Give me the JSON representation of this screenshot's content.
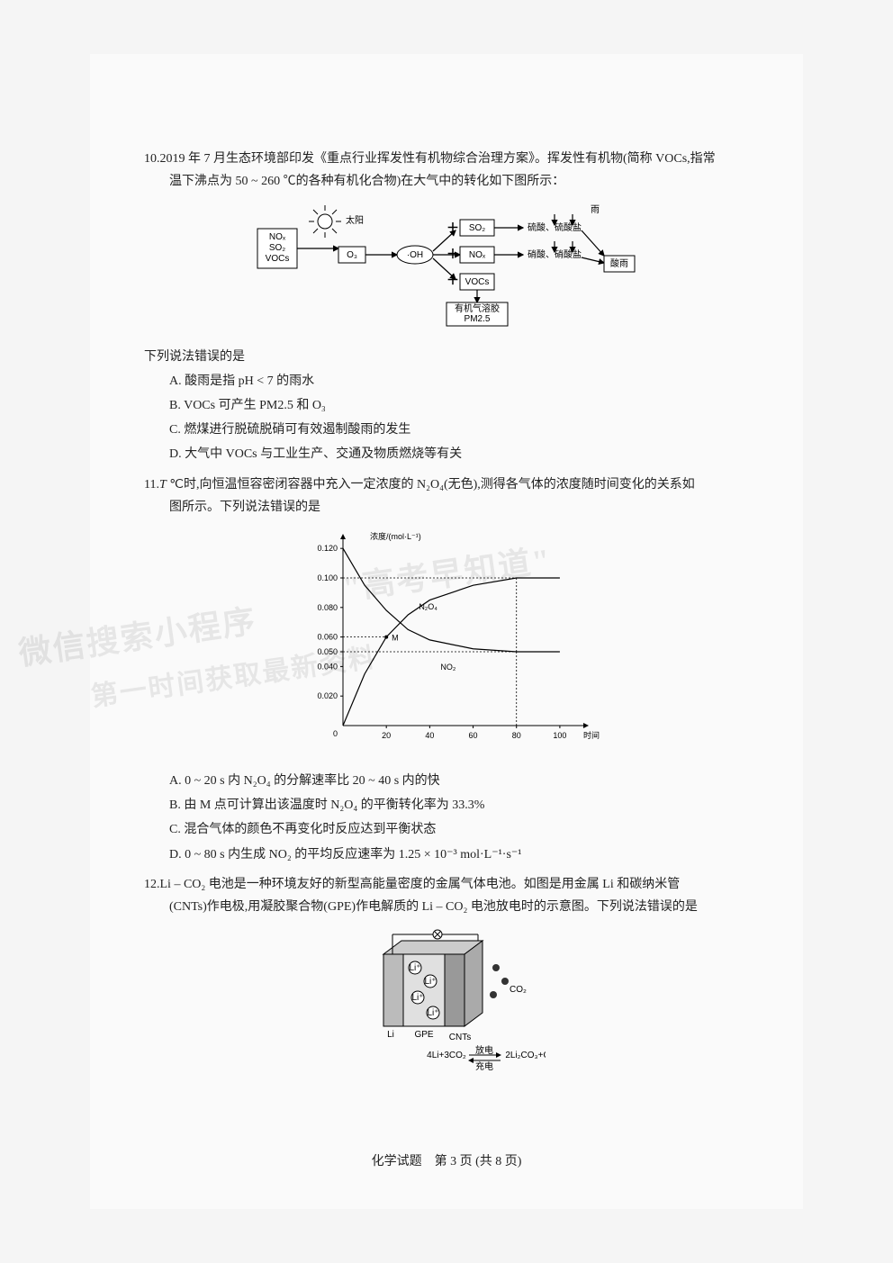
{
  "q10": {
    "num": "10.",
    "stem1": "2019 年 7 月生态环境部印发《重点行业挥发性有机物综合治理方案》。挥发性有机物(简称 VOCs,指常",
    "stem2": "温下沸点为 50 ~ 260 ℃的各种有机化合物)在大气中的转化如下图所示：",
    "prompt": "下列说法错误的是",
    "A": "A. 酸雨是指 pH < 7 的雨水",
    "B": "B. VOCs 可产生 PM2.5 和 O₃",
    "C": "C. 燃煤进行脱硫脱硝可有效遏制酸雨的发生",
    "D": "D. 大气中 VOCs 与工业生产、交通及物质燃烧等有关",
    "diag": {
      "leftbox": [
        "NOₓ",
        "SO₂",
        "VOCs"
      ],
      "sun": "太阳",
      "o3": "O₃",
      "oh": "·OH",
      "so2": "SO₂",
      "nox": "NOₓ",
      "vocs": "VOCs",
      "r1": "硫酸、硫酸盐",
      "r2": "硝酸、硝酸盐",
      "rain": "雨",
      "acid": "酸雨",
      "pm": "有机气溶胶\nPM2.5"
    }
  },
  "q11": {
    "num": "11.",
    "stem1": "T ℃时,向恒温恒容密闭容器中充入一定浓度的 N₂O₄(无色),测得各气体的浓度随时间变化的关系如",
    "stem2": "图所示。下列说法错误的是",
    "A": "A. 0 ~ 20 s 内 N₂O₄ 的分解速率比 20 ~ 40 s 内的快",
    "B": "B. 由 M 点可计算出该温度时 N₂O₄ 的平衡转化率为 33.3%",
    "C": "C. 混合气体的颜色不再变化时反应达到平衡状态",
    "D": "D. 0 ~ 80 s 内生成 NO₂ 的平均反应速率为 1.25 × 10⁻³ mol·L⁻¹·s⁻¹",
    "chart": {
      "ylabel": "浓度/(mol·L⁻¹)",
      "xlabel": "时间/s",
      "yticks": [
        "0.020",
        "0.040",
        "0.050",
        "0.060",
        "0.080",
        "0.100",
        "0.120"
      ],
      "ytick_vals": [
        0.02,
        0.04,
        0.05,
        0.06,
        0.08,
        0.1,
        0.12
      ],
      "xticks": [
        "20",
        "40",
        "60",
        "80",
        "100"
      ],
      "xtick_vals": [
        20,
        40,
        60,
        80,
        100
      ],
      "ylim": [
        0,
        0.125
      ],
      "xlim": [
        0,
        110
      ],
      "series_n2o4": {
        "label": "N₂O₄",
        "points": [
          [
            0,
            0.12
          ],
          [
            10,
            0.095
          ],
          [
            20,
            0.078
          ],
          [
            30,
            0.065
          ],
          [
            40,
            0.058
          ],
          [
            60,
            0.052
          ],
          [
            80,
            0.05
          ],
          [
            100,
            0.05
          ]
        ]
      },
      "series_no2": {
        "label": "NO₂",
        "points": [
          [
            0,
            0
          ],
          [
            10,
            0.035
          ],
          [
            20,
            0.06
          ],
          [
            30,
            0.075
          ],
          [
            40,
            0.085
          ],
          [
            60,
            0.095
          ],
          [
            80,
            0.1
          ],
          [
            100,
            0.1
          ]
        ]
      },
      "M_label": "M",
      "M_dash_y": 0.06,
      "eq_dash_x": 80,
      "eq_dash_y1": 0.05,
      "eq_dash_y2": 0.1,
      "origin_label": "0",
      "colors": {
        "axis": "#000000",
        "curve": "#000000",
        "bg": "#fafafa"
      }
    }
  },
  "q12": {
    "num": "12.",
    "stem1": "Li – CO₂ 电池是一种环境友好的新型高能量密度的金属气体电池。如图是用金属 Li 和碳纳米管",
    "stem2": "(CNTs)作电极,用凝胶聚合物(GPE)作电解质的 Li – CO₂ 电池放电时的示意图。下列说法错误的是",
    "diag": {
      "li": "Li",
      "gpe": "GPE",
      "cnts": "CNTs",
      "co2": "CO₂",
      "lip": "Li⁺",
      "eqn": "4Li + 3CO₂ ⇌ 2Li₂CO₃ + C",
      "fwd": "放电",
      "rev": "充电"
    }
  },
  "footer": "化学试题　第 3 页 (共 8 页)",
  "watermarks": {
    "w1": "微信搜索小程序",
    "w2": "\"高考早知道\"",
    "w3": "第一时间获取最新资料"
  }
}
